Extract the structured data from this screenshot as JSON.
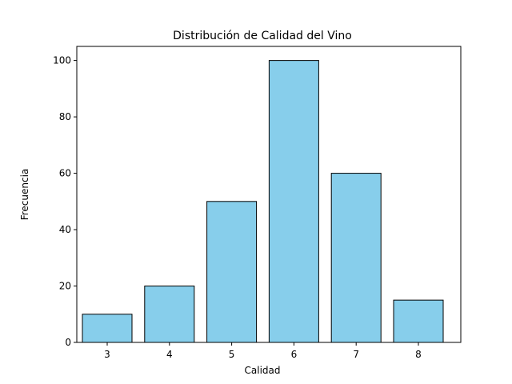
{
  "chart_data": {
    "type": "bar",
    "title": "Distribución de Calidad del Vino",
    "xlabel": "Calidad",
    "ylabel": "Frecuencia",
    "categories": [
      "3",
      "4",
      "5",
      "6",
      "7",
      "8"
    ],
    "values": [
      10,
      20,
      50,
      100,
      60,
      15
    ],
    "ylim": [
      0,
      105
    ],
    "yticks": [
      0,
      20,
      40,
      60,
      80,
      100
    ],
    "grid": false,
    "bar_color": "#87CEEB",
    "edge_color": "#000000"
  }
}
